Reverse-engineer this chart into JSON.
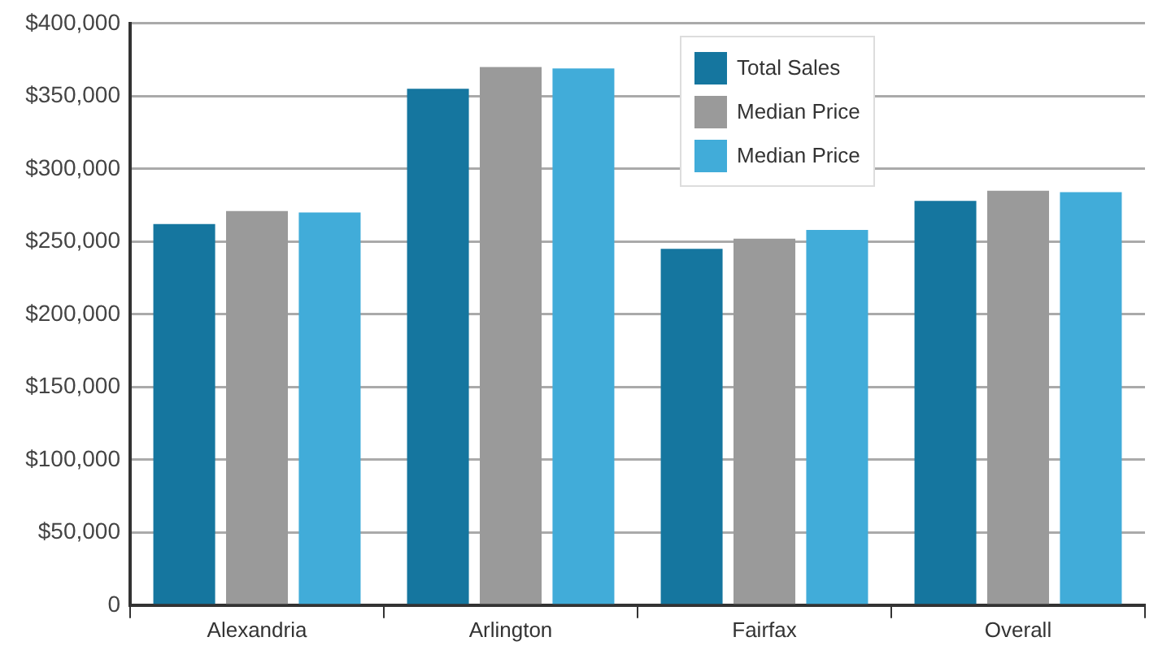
{
  "chart_data": {
    "type": "bar",
    "categories": [
      "Alexandria",
      "Arlington",
      "Fairfax",
      "Overall"
    ],
    "series": [
      {
        "name": "Total Sales",
        "color": "#15769f",
        "values": [
          262000,
          355000,
          245000,
          278000
        ]
      },
      {
        "name": "Median Price",
        "color": "#9a9a9a",
        "values": [
          271000,
          370000,
          252000,
          285000
        ]
      },
      {
        "name": "Median Price",
        "color": "#41acd9",
        "values": [
          270000,
          369000,
          258000,
          284000
        ]
      }
    ],
    "ylim": [
      0,
      400000
    ],
    "yticks": [
      {
        "value": 0,
        "label": "0"
      },
      {
        "value": 50000,
        "label": "$50,000"
      },
      {
        "value": 100000,
        "label": "$100,000"
      },
      {
        "value": 150000,
        "label": "$150,000"
      },
      {
        "value": 200000,
        "label": "$200,000"
      },
      {
        "value": 250000,
        "label": "$250,000"
      },
      {
        "value": 300000,
        "label": "$300,000"
      },
      {
        "value": 350000,
        "label": "$350,000"
      },
      {
        "value": 400000,
        "label": "$400,000"
      }
    ],
    "grid": "y",
    "legend": "top"
  }
}
